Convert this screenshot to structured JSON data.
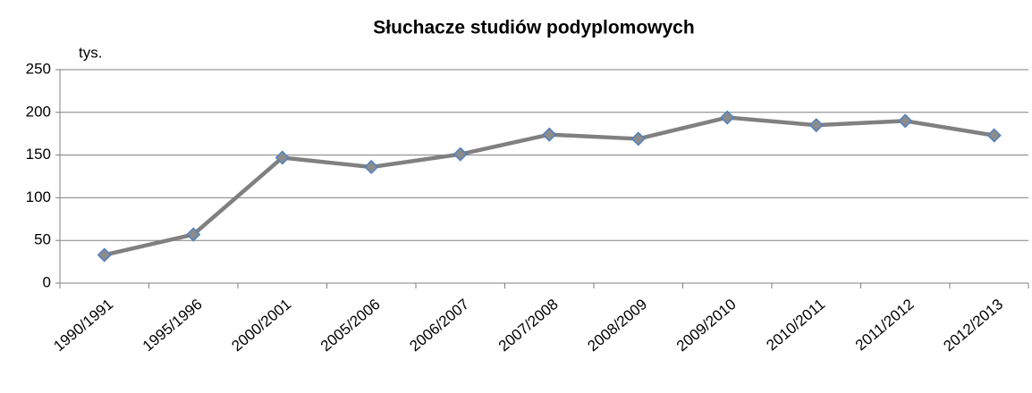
{
  "chart_data": {
    "type": "line",
    "title": "Słuchacze studiów podyplomowych",
    "y_label": "tys.",
    "categories": [
      "1990/1991",
      "1995/1996",
      "2000/2001",
      "2005/2006",
      "2006/2007",
      "2007/2008",
      "2008/2009",
      "2009/2010",
      "2010/2011",
      "2011/2012",
      "2012/2013"
    ],
    "values": [
      33,
      57,
      147,
      136,
      151,
      174,
      169,
      194,
      185,
      190,
      173
    ],
    "color": "#808080",
    "marker_color": "#8c8c8c",
    "marker_edge": "#4f81bd",
    "ylim": [
      0,
      250
    ],
    "yticks": [
      0,
      50,
      100,
      150,
      200,
      250
    ],
    "grid": true
  }
}
